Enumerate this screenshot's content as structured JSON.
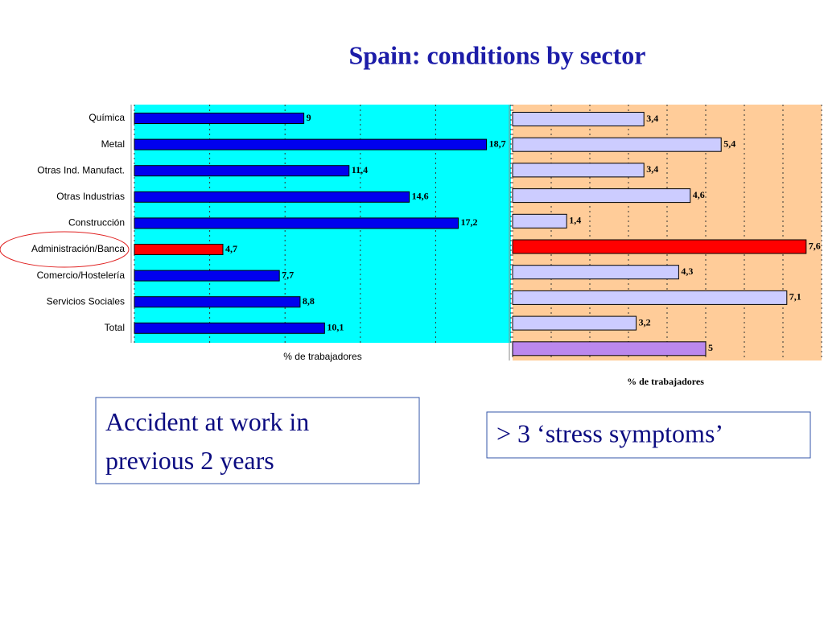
{
  "title": "Spain: conditions by sector",
  "chart_data": [
    {
      "type": "bar",
      "orientation": "horizontal",
      "categories": [
        "Química",
        "Metal",
        "Otras Ind. Manufact.",
        "Otras Industrias",
        "Construcción",
        "Administración/Banca",
        "Comercio/Hostelería",
        "Servicios Sociales",
        "Total"
      ],
      "values": [
        9,
        18.7,
        11.4,
        14.6,
        17.2,
        4.7,
        7.7,
        8.8,
        10.1
      ],
      "value_labels": [
        "9",
        "18,7",
        "11,4",
        "14,6",
        "17,2",
        "4,7",
        "7,7",
        "8,8",
        "10,1"
      ],
      "colors": [
        "#0000ee",
        "#0000ee",
        "#0000ee",
        "#0000ee",
        "#0000ee",
        "#ff0000",
        "#0000ee",
        "#0000ee",
        "#0000ee"
      ],
      "background": "#00ffff",
      "xlim": [
        0,
        20
      ],
      "xticks": [
        0,
        4,
        8,
        12,
        16,
        20
      ],
      "grid": true,
      "xlabel": "% de trabajadores",
      "caption": "Accident at work in previous 2 years"
    },
    {
      "type": "bar",
      "orientation": "horizontal",
      "values": [
        3.4,
        5.4,
        3.4,
        4.6,
        1.4,
        7.6,
        4.3,
        7.1,
        3.2,
        5
      ],
      "value_labels": [
        "3,4",
        "5,4",
        "3,4",
        "4,6",
        "1,4",
        "7,6",
        "4,3",
        "7,1",
        "3,2",
        "5"
      ],
      "colors": [
        "#ccccff",
        "#ccccff",
        "#ccccff",
        "#ccccff",
        "#ccccff",
        "#ff0000",
        "#ccccff",
        "#ccccff",
        "#ccccff",
        "#bb88ee"
      ],
      "background": "#ffcc99",
      "xlim": [
        0,
        8
      ],
      "xticks": [
        0,
        1,
        2,
        3,
        4,
        5,
        6,
        7,
        8
      ],
      "grid": true,
      "xlabel": "% de trabajadores",
      "caption": "> 3 ‘stress symptoms’"
    }
  ]
}
